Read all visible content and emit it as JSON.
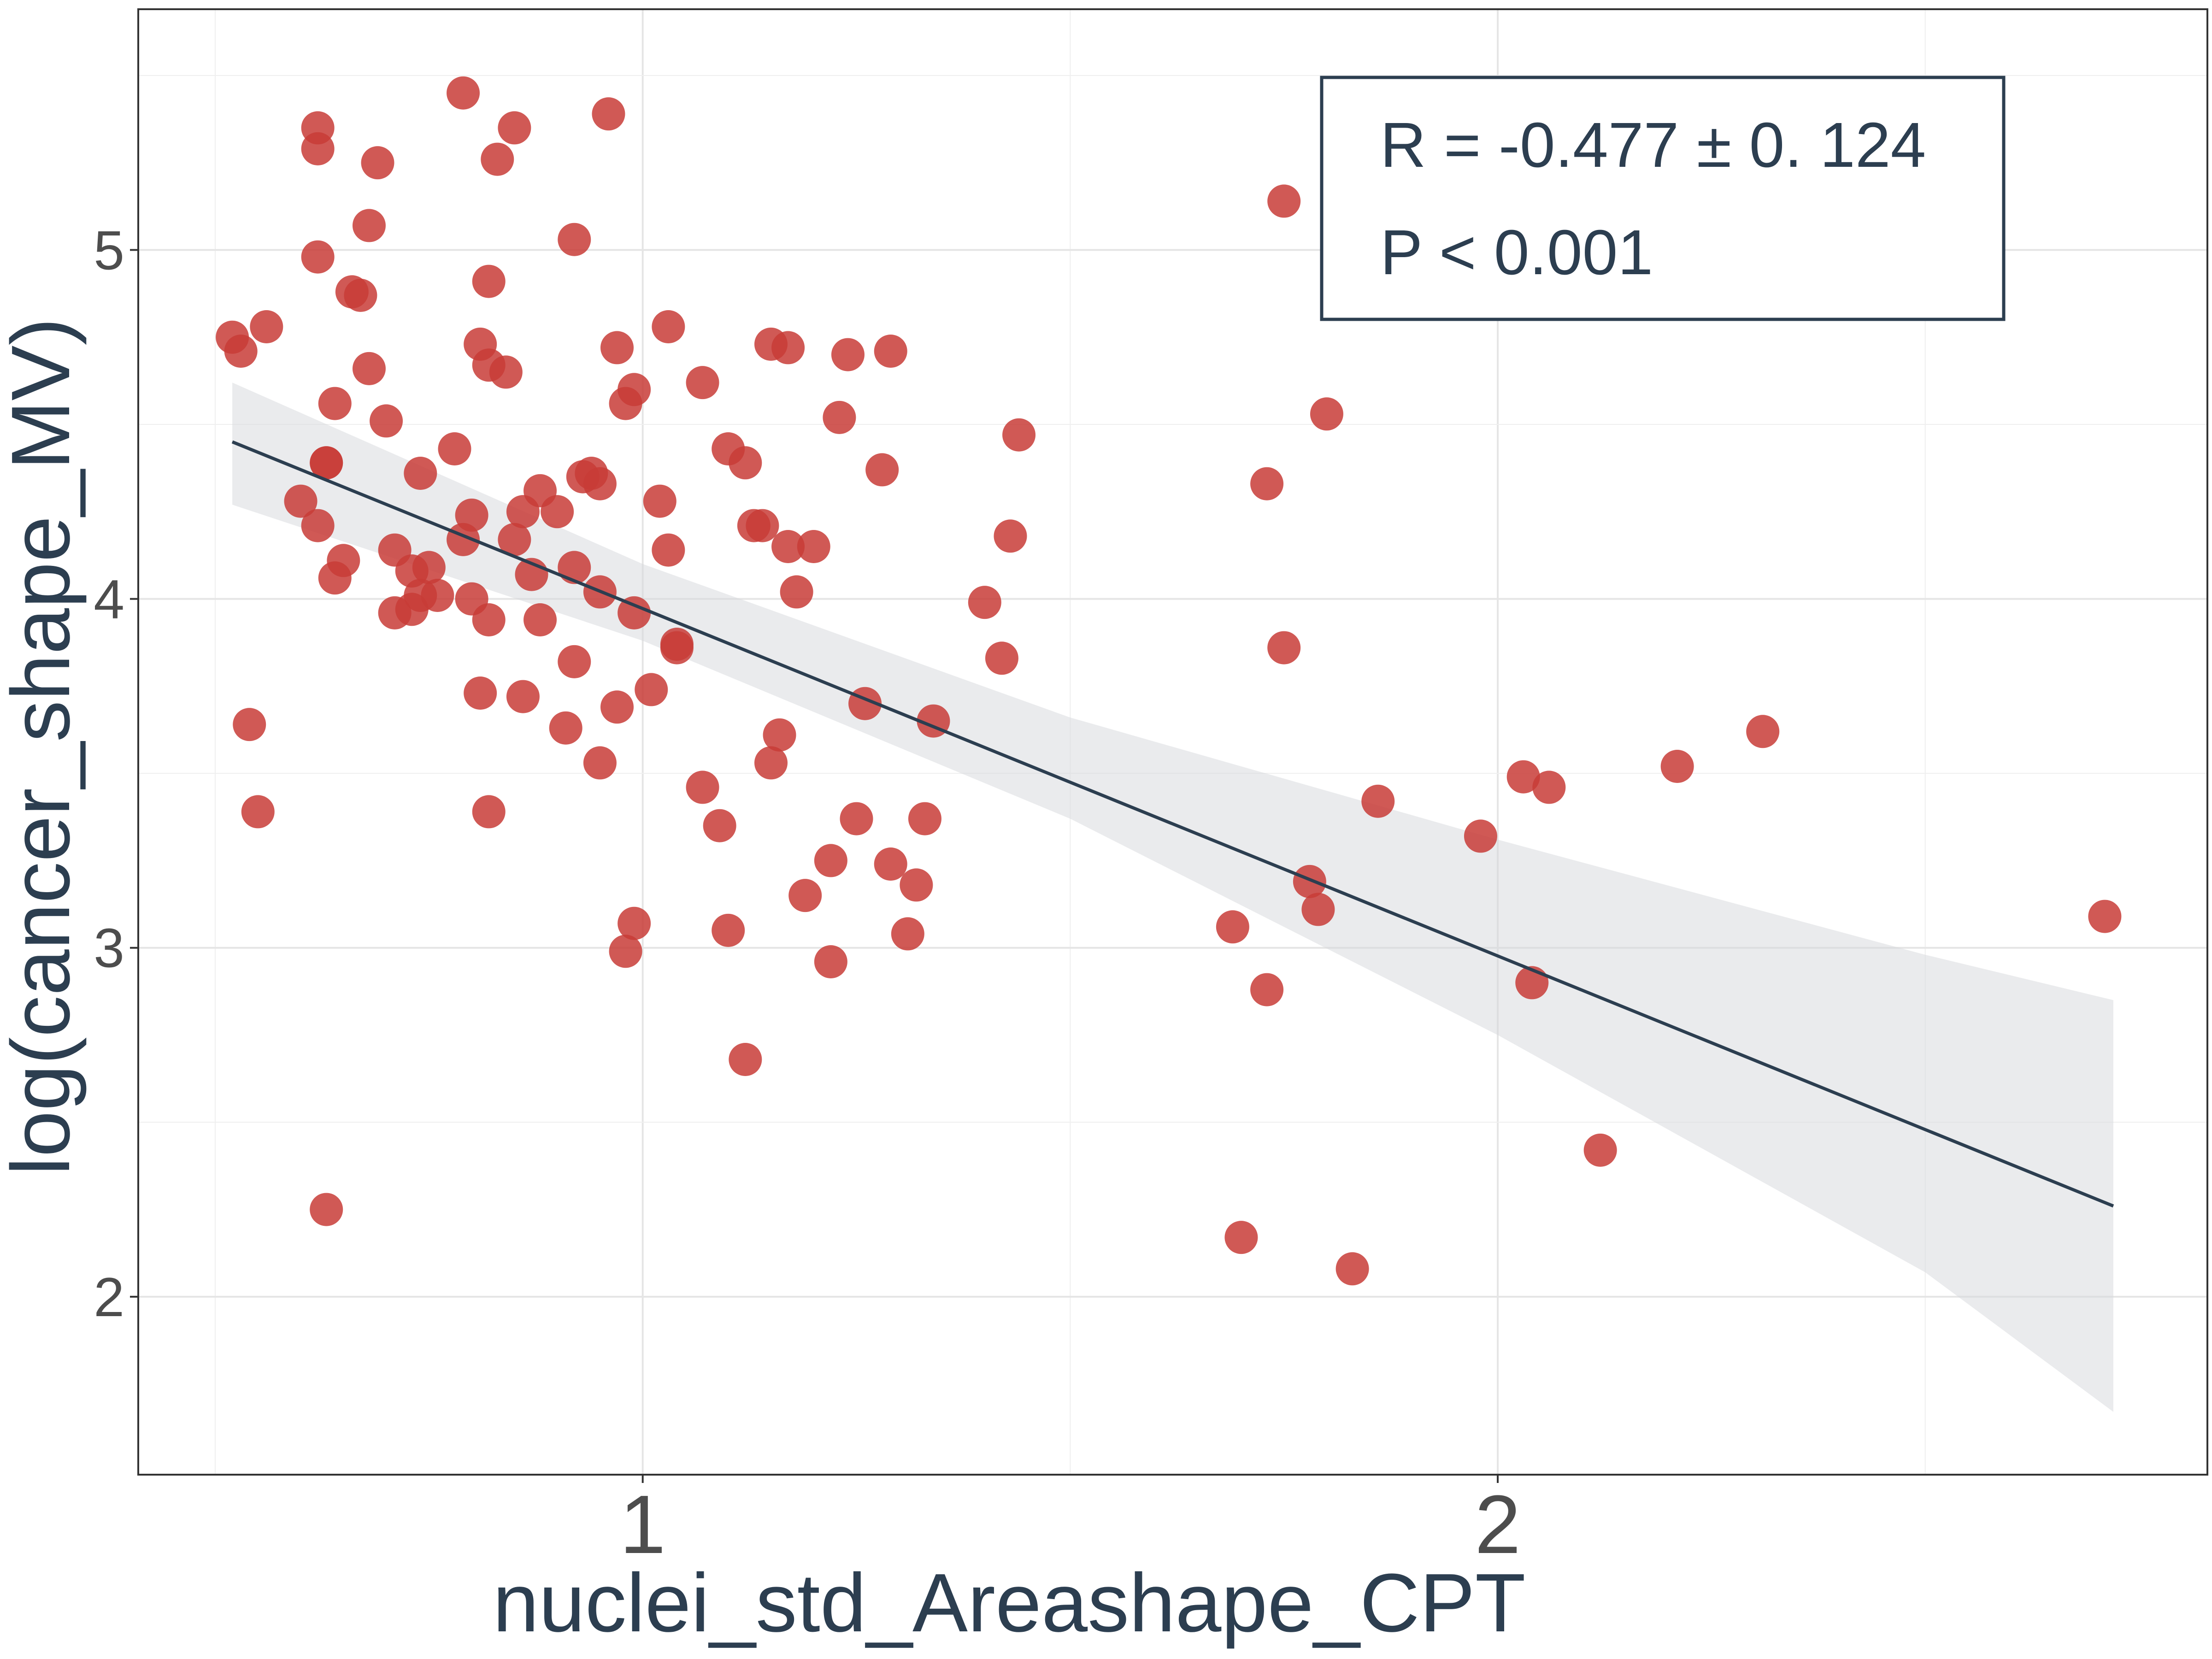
{
  "chart_data": {
    "type": "scatter",
    "xlabel": "nuclei_std_Areashape_CPT",
    "ylabel": "log(cancer_shape_MV)",
    "xlim": [
      0.41,
      2.83
    ],
    "ylim": [
      1.49,
      5.69
    ],
    "x_ticks": [
      {
        "value": 1,
        "label": "1"
      },
      {
        "value": 2,
        "label": "2"
      }
    ],
    "y_ticks": [
      {
        "value": 2,
        "label": "2"
      },
      {
        "value": 3,
        "label": "3"
      },
      {
        "value": 4,
        "label": "4"
      },
      {
        "value": 5,
        "label": "5"
      }
    ],
    "grid": true,
    "stats": {
      "r_text": "R = -0.477 ± 0. 124",
      "p_text": "P < 0.001",
      "position": "top-right"
    },
    "fit_line": {
      "x": [
        0.52,
        2.72
      ],
      "y": [
        4.45,
        2.26
      ]
    },
    "confidence_band": {
      "x": [
        0.52,
        1.0,
        1.5,
        2.0,
        2.5,
        2.72
      ],
      "upper": [
        4.62,
        4.1,
        3.66,
        3.31,
        2.98,
        2.85
      ],
      "lower": [
        4.27,
        3.88,
        3.37,
        2.75,
        2.07,
        1.67
      ]
    },
    "colors": {
      "points": "#c83c37",
      "line": "#2c3e50",
      "band": "#d5d8dc",
      "border": "#333333",
      "grid": "#e5e5e5"
    },
    "points": [
      {
        "x": 0.52,
        "y": 4.75
      },
      {
        "x": 0.53,
        "y": 4.71
      },
      {
        "x": 0.56,
        "y": 4.78
      },
      {
        "x": 0.54,
        "y": 3.64
      },
      {
        "x": 0.55,
        "y": 3.39
      },
      {
        "x": 0.6,
        "y": 4.28
      },
      {
        "x": 0.62,
        "y": 4.21
      },
      {
        "x": 0.63,
        "y": 4.39
      },
      {
        "x": 0.63,
        "y": 4.39
      },
      {
        "x": 0.64,
        "y": 4.56
      },
      {
        "x": 0.64,
        "y": 4.06
      },
      {
        "x": 0.65,
        "y": 4.11
      },
      {
        "x": 0.62,
        "y": 5.35
      },
      {
        "x": 0.62,
        "y": 5.29
      },
      {
        "x": 0.62,
        "y": 4.98
      },
      {
        "x": 0.66,
        "y": 4.88
      },
      {
        "x": 0.67,
        "y": 4.87
      },
      {
        "x": 0.68,
        "y": 5.07
      },
      {
        "x": 0.68,
        "y": 4.66
      },
      {
        "x": 0.69,
        "y": 5.25
      },
      {
        "x": 0.7,
        "y": 4.51
      },
      {
        "x": 0.71,
        "y": 4.14
      },
      {
        "x": 0.71,
        "y": 3.96
      },
      {
        "x": 0.73,
        "y": 3.97
      },
      {
        "x": 0.73,
        "y": 4.08
      },
      {
        "x": 0.74,
        "y": 4.36
      },
      {
        "x": 0.74,
        "y": 4.01
      },
      {
        "x": 0.75,
        "y": 4.09
      },
      {
        "x": 0.76,
        "y": 4.01
      },
      {
        "x": 0.78,
        "y": 4.43
      },
      {
        "x": 0.79,
        "y": 4.17
      },
      {
        "x": 0.79,
        "y": 5.45
      },
      {
        "x": 0.8,
        "y": 4.24
      },
      {
        "x": 0.8,
        "y": 4.0
      },
      {
        "x": 0.81,
        "y": 4.73
      },
      {
        "x": 0.81,
        "y": 3.73
      },
      {
        "x": 0.82,
        "y": 4.67
      },
      {
        "x": 0.82,
        "y": 3.94
      },
      {
        "x": 0.82,
        "y": 3.39
      },
      {
        "x": 0.82,
        "y": 4.91
      },
      {
        "x": 0.83,
        "y": 5.26
      },
      {
        "x": 0.84,
        "y": 4.65
      },
      {
        "x": 0.85,
        "y": 5.35
      },
      {
        "x": 0.85,
        "y": 4.17
      },
      {
        "x": 0.86,
        "y": 3.72
      },
      {
        "x": 0.86,
        "y": 4.25
      },
      {
        "x": 0.87,
        "y": 4.07
      },
      {
        "x": 0.88,
        "y": 3.94
      },
      {
        "x": 0.88,
        "y": 4.31
      },
      {
        "x": 0.9,
        "y": 4.25
      },
      {
        "x": 0.91,
        "y": 3.63
      },
      {
        "x": 0.92,
        "y": 4.09
      },
      {
        "x": 0.92,
        "y": 3.82
      },
      {
        "x": 0.92,
        "y": 5.03
      },
      {
        "x": 0.93,
        "y": 4.35
      },
      {
        "x": 0.94,
        "y": 4.36
      },
      {
        "x": 0.95,
        "y": 4.33
      },
      {
        "x": 0.95,
        "y": 4.02
      },
      {
        "x": 0.95,
        "y": 3.53
      },
      {
        "x": 0.96,
        "y": 5.39
      },
      {
        "x": 0.97,
        "y": 3.69
      },
      {
        "x": 0.97,
        "y": 4.72
      },
      {
        "x": 0.98,
        "y": 4.56
      },
      {
        "x": 0.98,
        "y": 2.99
      },
      {
        "x": 0.99,
        "y": 4.6
      },
      {
        "x": 0.99,
        "y": 3.07
      },
      {
        "x": 0.99,
        "y": 3.96
      },
      {
        "x": 1.01,
        "y": 3.74
      },
      {
        "x": 1.02,
        "y": 4.28
      },
      {
        "x": 1.03,
        "y": 4.14
      },
      {
        "x": 1.03,
        "y": 4.78
      },
      {
        "x": 1.04,
        "y": 3.86
      },
      {
        "x": 1.04,
        "y": 3.87
      },
      {
        "x": 1.07,
        "y": 4.62
      },
      {
        "x": 1.07,
        "y": 3.46
      },
      {
        "x": 1.09,
        "y": 3.35
      },
      {
        "x": 1.1,
        "y": 3.05
      },
      {
        "x": 1.1,
        "y": 4.43
      },
      {
        "x": 1.12,
        "y": 4.39
      },
      {
        "x": 1.12,
        "y": 2.68
      },
      {
        "x": 1.13,
        "y": 4.21
      },
      {
        "x": 1.14,
        "y": 4.21
      },
      {
        "x": 1.15,
        "y": 4.73
      },
      {
        "x": 1.15,
        "y": 3.53
      },
      {
        "x": 1.16,
        "y": 3.61
      },
      {
        "x": 1.17,
        "y": 4.72
      },
      {
        "x": 1.17,
        "y": 4.15
      },
      {
        "x": 1.18,
        "y": 4.02
      },
      {
        "x": 1.19,
        "y": 3.15
      },
      {
        "x": 1.2,
        "y": 4.15
      },
      {
        "x": 1.22,
        "y": 2.96
      },
      {
        "x": 1.22,
        "y": 3.25
      },
      {
        "x": 1.23,
        "y": 4.52
      },
      {
        "x": 1.24,
        "y": 4.7
      },
      {
        "x": 1.25,
        "y": 3.37
      },
      {
        "x": 1.26,
        "y": 3.7
      },
      {
        "x": 1.28,
        "y": 4.37
      },
      {
        "x": 1.29,
        "y": 3.24
      },
      {
        "x": 1.29,
        "y": 4.71
      },
      {
        "x": 1.31,
        "y": 3.04
      },
      {
        "x": 1.32,
        "y": 3.18
      },
      {
        "x": 1.33,
        "y": 3.37
      },
      {
        "x": 1.34,
        "y": 3.65
      },
      {
        "x": 1.4,
        "y": 3.99
      },
      {
        "x": 1.42,
        "y": 3.83
      },
      {
        "x": 1.43,
        "y": 4.18
      },
      {
        "x": 1.44,
        "y": 4.47
      },
      {
        "x": 1.69,
        "y": 3.06
      },
      {
        "x": 1.7,
        "y": 2.17
      },
      {
        "x": 1.73,
        "y": 4.33
      },
      {
        "x": 1.73,
        "y": 2.88
      },
      {
        "x": 1.75,
        "y": 5.14
      },
      {
        "x": 1.75,
        "y": 3.86
      },
      {
        "x": 1.78,
        "y": 3.19
      },
      {
        "x": 1.79,
        "y": 3.11
      },
      {
        "x": 1.8,
        "y": 4.53
      },
      {
        "x": 1.83,
        "y": 2.08
      },
      {
        "x": 1.86,
        "y": 3.42
      },
      {
        "x": 1.98,
        "y": 3.32
      },
      {
        "x": 2.03,
        "y": 3.49
      },
      {
        "x": 2.04,
        "y": 2.9
      },
      {
        "x": 2.06,
        "y": 3.46
      },
      {
        "x": 2.12,
        "y": 2.42
      },
      {
        "x": 2.21,
        "y": 3.52
      },
      {
        "x": 2.31,
        "y": 3.62
      },
      {
        "x": 2.71,
        "y": 3.09
      },
      {
        "x": 0.63,
        "y": 2.25
      }
    ]
  }
}
